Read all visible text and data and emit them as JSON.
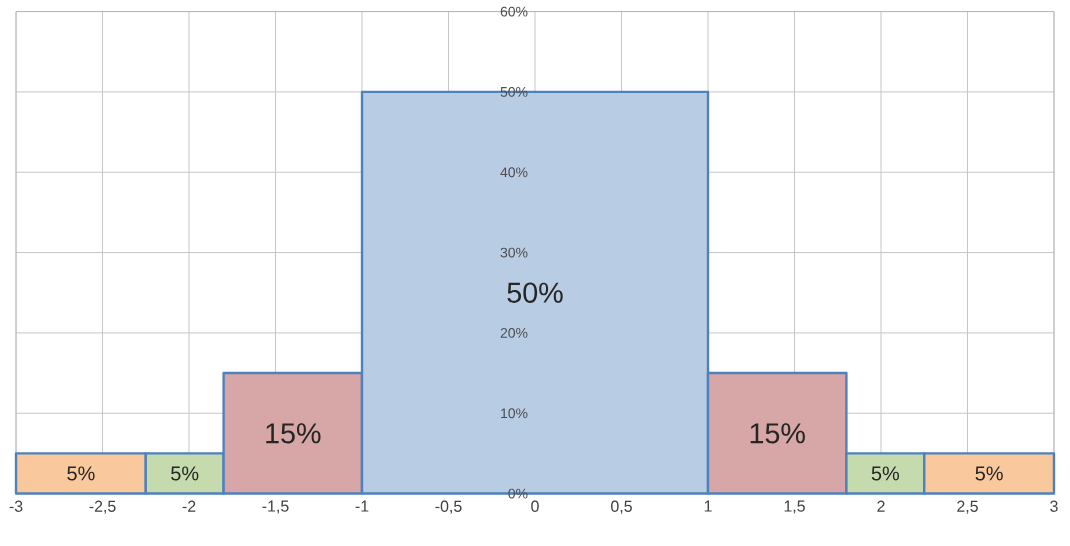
{
  "chart_data": {
    "type": "histogram",
    "bins": [
      -3,
      -2.25,
      -1.8,
      -1,
      1,
      1.8,
      2.25,
      3
    ],
    "values": [
      5,
      5,
      15,
      50,
      15,
      5,
      5
    ],
    "colors": [
      "#f9c89c",
      "#c5dbae",
      "#d7a6a6",
      "#b8cce4",
      "#d7a6a6",
      "#c5dbae",
      "#f9c89c"
    ],
    "color": "#4f81bd",
    "value_labels": [
      "5%",
      "5%",
      "15%",
      "50%",
      "15%",
      "5%",
      "5%"
    ],
    "xlim": [
      -3,
      3
    ],
    "xticks": [
      {
        "value": -3,
        "label": "-3"
      },
      {
        "value": -2.5,
        "label": "-2,5"
      },
      {
        "value": -2,
        "label": "-2"
      },
      {
        "value": -1.5,
        "label": "-1,5"
      },
      {
        "value": -1,
        "label": "-1"
      },
      {
        "value": -0.5,
        "label": "-0,5"
      },
      {
        "value": 0,
        "label": "0"
      },
      {
        "value": 0.5,
        "label": "0,5"
      },
      {
        "value": 1,
        "label": "1"
      },
      {
        "value": 1.5,
        "label": "1,5"
      },
      {
        "value": 2,
        "label": "2"
      },
      {
        "value": 2.5,
        "label": "2,5"
      },
      {
        "value": 3,
        "label": "3"
      }
    ],
    "ylim": [
      0,
      60
    ],
    "yticks": [
      {
        "value": 0,
        "label": "0%"
      },
      {
        "value": 10,
        "label": "10%"
      },
      {
        "value": 20,
        "label": "20%"
      },
      {
        "value": 30,
        "label": "30%"
      },
      {
        "value": 40,
        "label": "40%"
      },
      {
        "value": 50,
        "label": "50%"
      },
      {
        "value": 60,
        "label": "60%"
      }
    ],
    "grid": true
  }
}
